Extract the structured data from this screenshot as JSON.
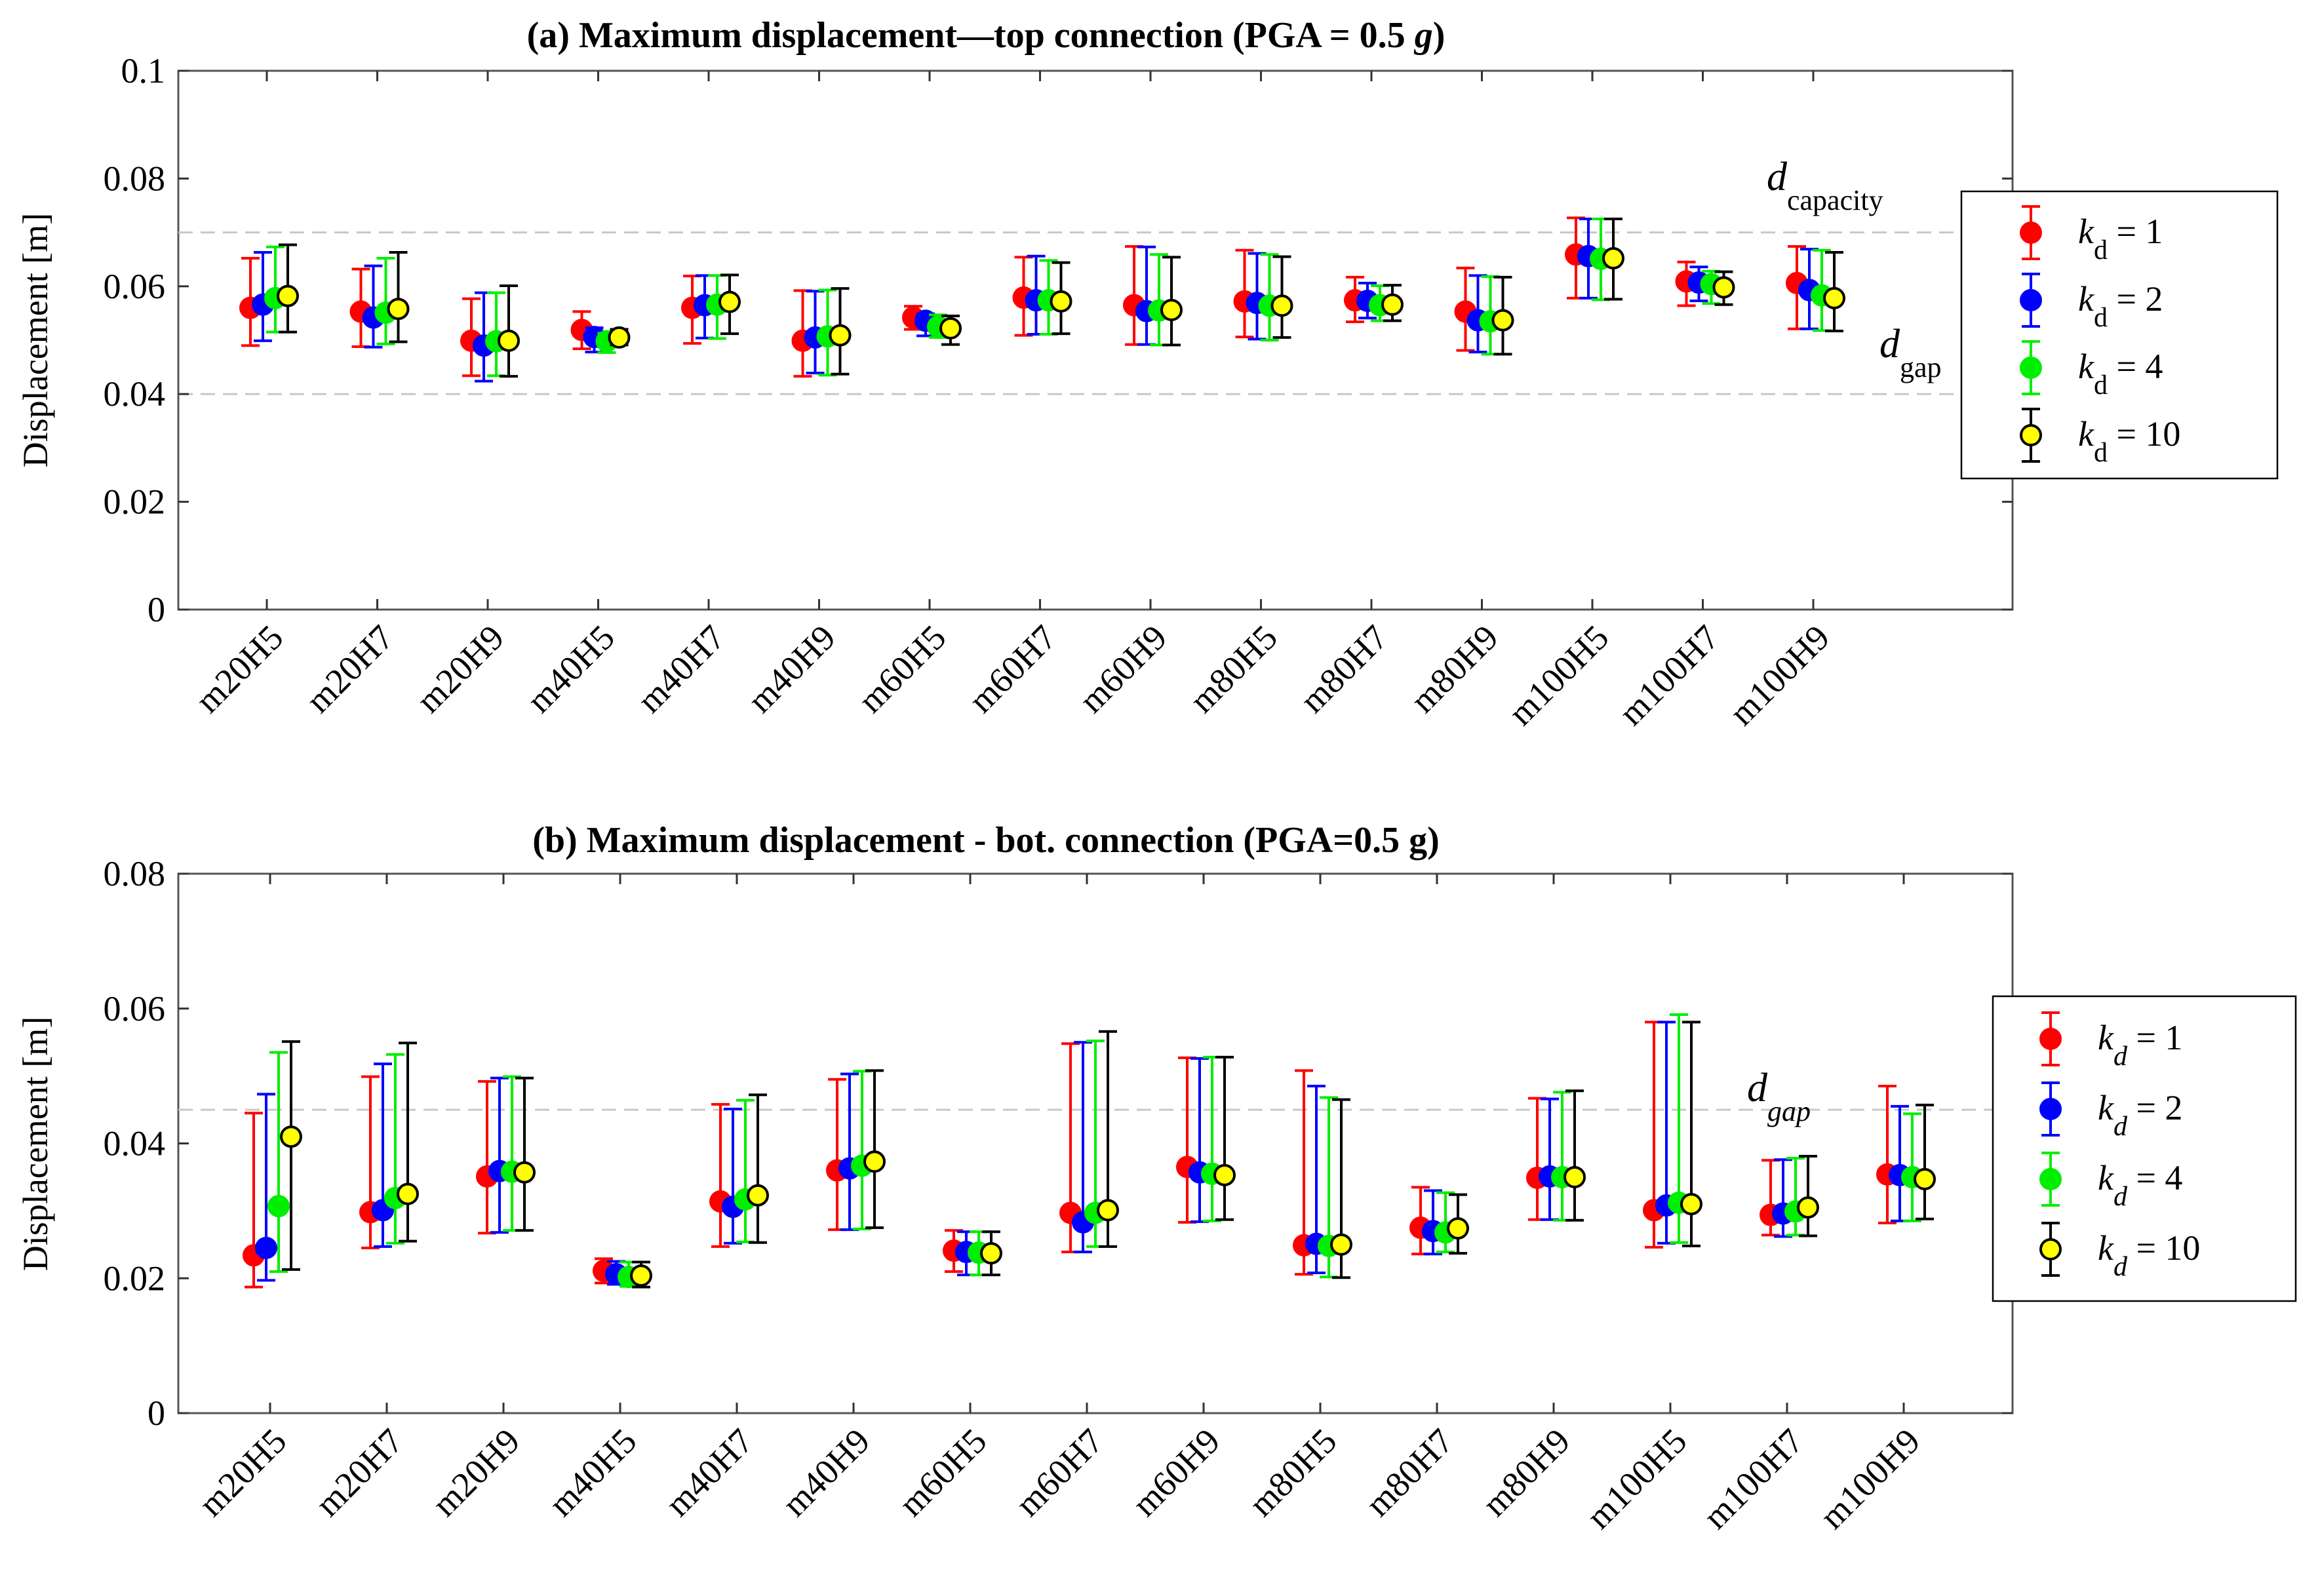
{
  "chart_data": [
    {
      "type": "scatter",
      "subtype": "errorbar",
      "title": "(a) Maximum displacement—top connection (PGA = 0.5 g)",
      "title_main": "(a) Maximum displacement—top connection (PGA = 0.5 ",
      "title_italic": "g",
      "title_end": ")",
      "xlabel": "",
      "ylabel": "Displacement [m]",
      "ylim": [
        0,
        0.1
      ],
      "yticks": [
        "0",
        "0.02",
        "0.04",
        "0.06",
        "0.08",
        "0.1"
      ],
      "categories": [
        "m20H5",
        "m20H7",
        "m20H9",
        "m40H5",
        "m40H7",
        "m40H9",
        "m60H5",
        "m60H7",
        "m60H9",
        "m80H5",
        "m80H7",
        "m80H9",
        "m100H5",
        "m100H7",
        "m100H9"
      ],
      "reference_lines": [
        {
          "value": 0.07,
          "label_base": "d",
          "label_sub": "capacity",
          "italic_sub": false
        },
        {
          "value": 0.04,
          "label_base": "d",
          "label_sub": "gap",
          "italic_sub": false
        }
      ],
      "legend_position": "outside-right",
      "legend_sub_italic": false,
      "series": [
        {
          "name": "k_d = 1",
          "label_base": "k",
          "label_sub": "d",
          "label_rest": " = 1",
          "color": "#ff0000",
          "marker_fill": "#ff0000",
          "values": [
            0.056,
            0.0553,
            0.0499,
            0.0519,
            0.056,
            0.0499,
            0.0542,
            0.0579,
            0.0565,
            0.0572,
            0.0574,
            0.0553,
            0.0659,
            0.0609,
            0.0606
          ],
          "lower": [
            0.049,
            0.0488,
            0.0434,
            0.0484,
            0.0494,
            0.0433,
            0.052,
            0.0509,
            0.0492,
            0.0506,
            0.0534,
            0.0481,
            0.0578,
            0.0564,
            0.0521
          ],
          "upper": [
            0.0652,
            0.0632,
            0.0577,
            0.0553,
            0.0619,
            0.0592,
            0.0563,
            0.0654,
            0.0674,
            0.0667,
            0.0617,
            0.0634,
            0.0727,
            0.0645,
            0.0674
          ]
        },
        {
          "name": "k_d = 2",
          "label_base": "k",
          "label_sub": "d",
          "label_rest": " = 2",
          "color": "#0000ff",
          "marker_fill": "#0000ff",
          "values": [
            0.0566,
            0.0542,
            0.049,
            0.0506,
            0.0565,
            0.0505,
            0.0536,
            0.0574,
            0.0554,
            0.0569,
            0.0573,
            0.0537,
            0.0656,
            0.0607,
            0.0593
          ],
          "lower": [
            0.0499,
            0.0487,
            0.0424,
            0.0478,
            0.0504,
            0.0439,
            0.0508,
            0.0511,
            0.0492,
            0.0502,
            0.0541,
            0.0478,
            0.0578,
            0.0573,
            0.0521
          ],
          "upper": [
            0.0663,
            0.0638,
            0.0588,
            0.0523,
            0.062,
            0.0591,
            0.0549,
            0.0656,
            0.0673,
            0.0661,
            0.0606,
            0.062,
            0.0725,
            0.0636,
            0.0669
          ]
        },
        {
          "name": "k_d = 4",
          "label_base": "k",
          "label_sub": "d",
          "label_rest": " = 4",
          "color": "#00ee00",
          "marker_fill": "#00ee00",
          "values": [
            0.0578,
            0.0551,
            0.0498,
            0.0498,
            0.0566,
            0.0507,
            0.0525,
            0.0574,
            0.0555,
            0.0564,
            0.0565,
            0.0535,
            0.0651,
            0.0604,
            0.0583
          ],
          "lower": [
            0.0515,
            0.0493,
            0.0434,
            0.0477,
            0.0503,
            0.0435,
            0.0505,
            0.0511,
            0.0491,
            0.05,
            0.0536,
            0.0474,
            0.0575,
            0.0568,
            0.0518
          ],
          "upper": [
            0.0673,
            0.0652,
            0.0588,
            0.0513,
            0.062,
            0.0593,
            0.0547,
            0.0648,
            0.0659,
            0.0659,
            0.0601,
            0.0618,
            0.0725,
            0.0628,
            0.0667
          ]
        },
        {
          "name": "k_d = 10",
          "label_base": "k",
          "label_sub": "d",
          "label_rest": " = 10",
          "color": "#000000",
          "marker_fill": "#ffff00",
          "values": [
            0.0582,
            0.0558,
            0.0499,
            0.0505,
            0.0571,
            0.0509,
            0.0522,
            0.0572,
            0.0556,
            0.0564,
            0.0566,
            0.0537,
            0.0652,
            0.0598,
            0.0578
          ],
          "lower": [
            0.0515,
            0.0497,
            0.0433,
            0.0491,
            0.0512,
            0.0437,
            0.0492,
            0.0512,
            0.0491,
            0.0505,
            0.0536,
            0.0474,
            0.0576,
            0.0566,
            0.0517
          ],
          "upper": [
            0.0677,
            0.0663,
            0.0601,
            0.052,
            0.0621,
            0.0596,
            0.0545,
            0.0644,
            0.0654,
            0.0655,
            0.0602,
            0.0617,
            0.0725,
            0.0627,
            0.0663
          ]
        }
      ]
    },
    {
      "type": "scatter",
      "subtype": "errorbar",
      "title": "(b) Maximum displacement - bot. connection (PGA=0.5 g)",
      "title_main": "(b) Maximum displacement - bot. connection (PGA=0.5 g)",
      "title_italic": "",
      "title_end": "",
      "xlabel": "",
      "ylabel": "Displacement [m]",
      "ylim": [
        0,
        0.08
      ],
      "yticks": [
        "0",
        "0.02",
        "0.04",
        "0.06",
        "0.08"
      ],
      "categories": [
        "m20H5",
        "m20H7",
        "m20H9",
        "m40H5",
        "m40H7",
        "m40H9",
        "m60H5",
        "m60H7",
        "m60H9",
        "m80H5",
        "m80H7",
        "m80H9",
        "m100H5",
        "m100H7",
        "m100H9"
      ],
      "reference_lines": [
        {
          "value": 0.045,
          "label_base": "d",
          "label_sub": "gap",
          "italic_sub": true
        }
      ],
      "legend_position": "outside-right",
      "legend_sub_italic": true,
      "series": [
        {
          "name": "k_d = 1",
          "label_base": "k",
          "label_sub": "d",
          "label_rest": " = 1",
          "color": "#ff0000",
          "marker_fill": "#ff0000",
          "values": [
            0.0234,
            0.0298,
            0.0351,
            0.0211,
            0.0314,
            0.036,
            0.0241,
            0.0297,
            0.0365,
            0.0249,
            0.0275,
            0.0349,
            0.0301,
            0.0294,
            0.0354
          ],
          "lower": [
            0.0187,
            0.0245,
            0.0267,
            0.0193,
            0.0247,
            0.0272,
            0.021,
            0.0239,
            0.0283,
            0.0206,
            0.0236,
            0.0287,
            0.0246,
            0.0264,
            0.0282
          ],
          "upper": [
            0.0445,
            0.0499,
            0.0492,
            0.0229,
            0.0458,
            0.0495,
            0.0271,
            0.0548,
            0.0527,
            0.0508,
            0.0335,
            0.0467,
            0.058,
            0.0375,
            0.0485
          ]
        },
        {
          "name": "k_d = 2",
          "label_base": "k",
          "label_sub": "d",
          "label_rest": " = 2",
          "color": "#0000ff",
          "marker_fill": "#0000ff",
          "values": [
            0.0245,
            0.0301,
            0.0359,
            0.0206,
            0.0306,
            0.0363,
            0.0239,
            0.0283,
            0.0357,
            0.0251,
            0.027,
            0.0351,
            0.0308,
            0.0296,
            0.0353
          ],
          "lower": [
            0.0197,
            0.0247,
            0.0268,
            0.0191,
            0.0252,
            0.0272,
            0.0205,
            0.0239,
            0.0284,
            0.0208,
            0.0236,
            0.0287,
            0.0252,
            0.0262,
            0.0285
          ],
          "upper": [
            0.0473,
            0.0518,
            0.0497,
            0.0225,
            0.0451,
            0.0503,
            0.0269,
            0.055,
            0.0526,
            0.0485,
            0.033,
            0.0466,
            0.058,
            0.0376,
            0.0455
          ]
        },
        {
          "name": "k_d = 4",
          "label_base": "k",
          "label_sub": "d",
          "label_rest": " = 4",
          "color": "#00ee00",
          "marker_fill": "#00ee00",
          "values": [
            0.0307,
            0.0319,
            0.0358,
            0.0202,
            0.0317,
            0.0367,
            0.0238,
            0.0297,
            0.0355,
            0.0248,
            0.0268,
            0.035,
            0.0312,
            0.0299,
            0.035
          ],
          "lower": [
            0.021,
            0.0252,
            0.0271,
            0.0188,
            0.0254,
            0.0273,
            0.0205,
            0.0247,
            0.0285,
            0.0202,
            0.0239,
            0.0286,
            0.0253,
            0.0264,
            0.0285
          ],
          "upper": [
            0.0535,
            0.0532,
            0.0499,
            0.0224,
            0.0464,
            0.0507,
            0.0269,
            0.0552,
            0.0528,
            0.0468,
            0.0327,
            0.0476,
            0.0591,
            0.0378,
            0.0444
          ]
        },
        {
          "name": "k_d = 10",
          "label_base": "k",
          "label_sub": "d",
          "label_rest": " = 10",
          "color": "#000000",
          "marker_fill": "#ffff00",
          "values": [
            0.041,
            0.0325,
            0.0357,
            0.0204,
            0.0323,
            0.0373,
            0.0237,
            0.0301,
            0.0353,
            0.025,
            0.0274,
            0.035,
            0.031,
            0.0305,
            0.0347
          ],
          "lower": [
            0.0213,
            0.0255,
            0.0271,
            0.0187,
            0.0253,
            0.0275,
            0.0205,
            0.0247,
            0.0287,
            0.0201,
            0.0237,
            0.0286,
            0.0248,
            0.0263,
            0.0288
          ],
          "upper": [
            0.0551,
            0.0549,
            0.0497,
            0.0224,
            0.0472,
            0.0508,
            0.0269,
            0.0566,
            0.0528,
            0.0465,
            0.0324,
            0.0478,
            0.058,
            0.0381,
            0.0457
          ]
        }
      ]
    }
  ]
}
